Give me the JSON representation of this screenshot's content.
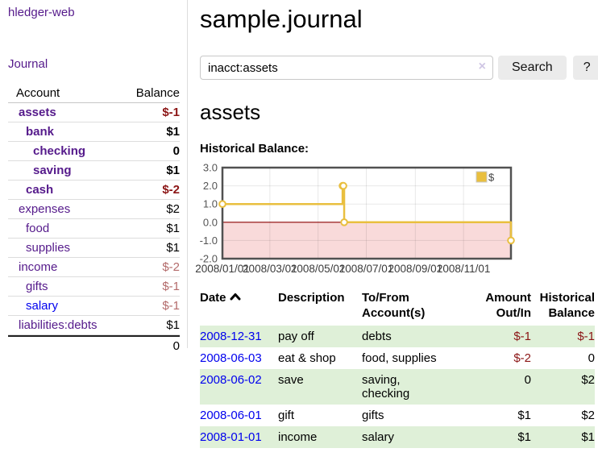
{
  "colors": {
    "purple-link": "#551a8b",
    "blue-link": "#0000ee",
    "neg-strong": "#8b1515",
    "neg-dim": "#b36a6a",
    "row-green": "#dff0d8",
    "button-bg": "#ebebeb",
    "border-gray": "#dddddd",
    "chart-gold": "#e9bf3f"
  },
  "sidebar": {
    "brand": "hledger-web",
    "nav": {
      "journal": "Journal"
    },
    "accounts": {
      "col_account": "Account",
      "col_balance": "Balance",
      "rows": [
        {
          "name": "assets",
          "balance": "$-1"
        },
        {
          "name": "bank",
          "balance": "$1"
        },
        {
          "name": "checking",
          "balance": "0"
        },
        {
          "name": "saving",
          "balance": "$1"
        },
        {
          "name": "cash",
          "balance": "$-2"
        },
        {
          "name": "expenses",
          "balance": "$2"
        },
        {
          "name": "food",
          "balance": "$1"
        },
        {
          "name": "supplies",
          "balance": "$1"
        },
        {
          "name": "income",
          "balance": "$-2"
        },
        {
          "name": "gifts",
          "balance": "$-1"
        },
        {
          "name": "salary",
          "balance": "$-1"
        },
        {
          "name": "liabilities:debts",
          "balance": "$1"
        }
      ],
      "total": "0"
    }
  },
  "header": {
    "title": "sample.journal"
  },
  "search": {
    "value": "inacct:assets",
    "clear_icon": "×",
    "button": "Search",
    "help": "?"
  },
  "account_view": {
    "heading": "assets",
    "chart_title": "Historical Balance:"
  },
  "chart_data": {
    "type": "line",
    "subtype": "step-after",
    "title": "Historical Balance:",
    "legend": [
      {
        "label": "$",
        "color": "#e9bf3f"
      }
    ],
    "legend_position": "top-right",
    "x": [
      "2008-01-01",
      "2008-06-01",
      "2008-06-02",
      "2008-06-03",
      "2008-12-31"
    ],
    "series": [
      {
        "name": "$",
        "values": [
          1,
          2,
          2,
          0,
          -1
        ]
      }
    ],
    "xrange": [
      "2008-01-01",
      "2008-12-31"
    ],
    "ylim": [
      -2,
      3
    ],
    "yticks": [
      "3.0",
      "2.0",
      "1.0",
      "0.0",
      "-1.0",
      "-2.0"
    ],
    "xticks": [
      "2008/01/01",
      "2008/03/01",
      "2008/05/01",
      "2008/07/01",
      "2008/09/01",
      "2008/11/01"
    ],
    "grid": true,
    "negative_region_fill": "#f9dada",
    "zero_line_color": "#8b0000"
  },
  "register": {
    "headers": {
      "date": "Date",
      "description": "Description",
      "tofrom": "To/From Account(s)",
      "amount": "Amount Out/In",
      "balance": "Historical Balance"
    },
    "rows": [
      {
        "date": "2008-12-31",
        "description": "pay off",
        "tofrom": "debts",
        "amount": "$-1",
        "balance": "$-1"
      },
      {
        "date": "2008-06-03",
        "description": "eat & shop",
        "tofrom": "food, supplies",
        "amount": "$-2",
        "balance": "0"
      },
      {
        "date": "2008-06-02",
        "description": "save",
        "tofrom": "saving,\nchecking",
        "amount": "0",
        "balance": "$2"
      },
      {
        "date": "2008-06-01",
        "description": "gift",
        "tofrom": "gifts",
        "amount": "$1",
        "balance": "$2"
      },
      {
        "date": "2008-01-01",
        "description": "income",
        "tofrom": "salary",
        "amount": "$1",
        "balance": "$1"
      }
    ]
  }
}
